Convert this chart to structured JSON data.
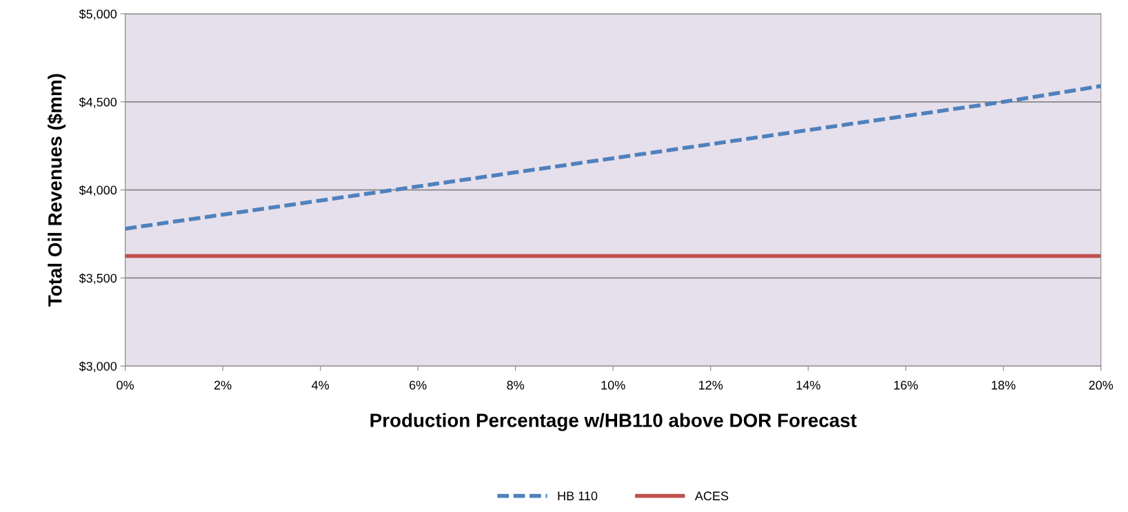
{
  "chart_data": {
    "type": "line",
    "xlabel": "Production Percentage w/HB110 above DOR Forecast",
    "ylabel": "Total Oil Revenues ($mm)",
    "x": [
      0,
      2,
      4,
      6,
      8,
      10,
      12,
      14,
      16,
      18,
      20
    ],
    "series": [
      {
        "name": "HB 110",
        "color": "#4f81bd",
        "line_style": "dashed",
        "values": [
          3780,
          3860,
          3940,
          4020,
          4100,
          4180,
          4260,
          4340,
          4420,
          4500,
          4590
        ]
      },
      {
        "name": "ACES",
        "color": "#c0504d",
        "line_style": "solid",
        "values": [
          3625,
          3625,
          3625,
          3625,
          3625,
          3625,
          3625,
          3625,
          3625,
          3625,
          3625
        ]
      }
    ],
    "xlim": [
      0,
      20
    ],
    "xticks": [
      {
        "value": 0,
        "label": "0%"
      },
      {
        "value": 2,
        "label": "2%"
      },
      {
        "value": 4,
        "label": "4%"
      },
      {
        "value": 6,
        "label": "6%"
      },
      {
        "value": 8,
        "label": "8%"
      },
      {
        "value": 10,
        "label": "10%"
      },
      {
        "value": 12,
        "label": "12%"
      },
      {
        "value": 14,
        "label": "14%"
      },
      {
        "value": 16,
        "label": "16%"
      },
      {
        "value": 18,
        "label": "18%"
      },
      {
        "value": 20,
        "label": "20%"
      }
    ],
    "ylim": [
      3000,
      5000
    ],
    "yticks": [
      {
        "value": 3000,
        "label": "$3,000"
      },
      {
        "value": 3500,
        "label": "$3,500"
      },
      {
        "value": 4000,
        "label": "$4,000"
      },
      {
        "value": 4500,
        "label": "$4,500"
      },
      {
        "value": 5000,
        "label": "$5,000"
      }
    ],
    "grid": "y",
    "legend": "bottom",
    "marker": "none"
  }
}
